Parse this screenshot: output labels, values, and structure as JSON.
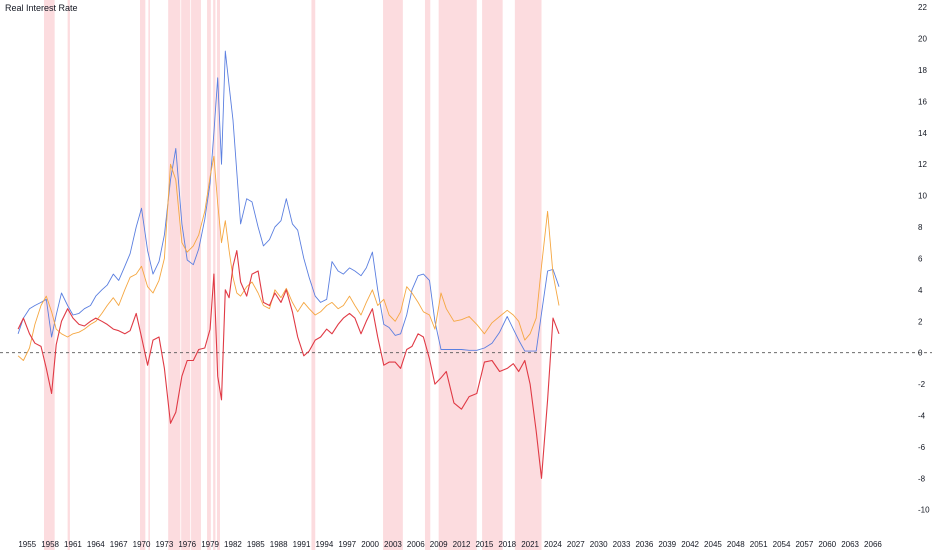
{
  "chart_data": {
    "type": "line",
    "title": "Real Interest Rate",
    "xlabel": "",
    "ylabel": "",
    "xlim": [
      1953,
      2068.5
    ],
    "ylim": [
      -10.4,
      22.2
    ],
    "x_ticks": [
      "1955",
      "1958",
      "1961",
      "1964",
      "1967",
      "1970",
      "1973",
      "1976",
      "1979",
      "1982",
      "1985",
      "1988",
      "1991",
      "1994",
      "1997",
      "2000",
      "2003",
      "2006",
      "2009",
      "2012",
      "2015",
      "2018",
      "2021",
      "2024",
      "2027",
      "2030",
      "2033",
      "2036",
      "2039",
      "2042",
      "2045",
      "2048",
      "2051",
      "2054",
      "2057",
      "2060",
      "2063",
      "2066"
    ],
    "y_ticks": [
      "-10",
      "-8",
      "-6",
      "-4",
      "-2",
      "0",
      "2",
      "4",
      "6",
      "8",
      "10",
      "12",
      "14",
      "16",
      "18",
      "20",
      "22"
    ],
    "zero_line": true,
    "grid": false,
    "legend": "none",
    "shaded_periods": [
      [
        1957.2,
        1958.6
      ],
      [
        1960.3,
        1960.6
      ],
      [
        1969.8,
        1970.5
      ],
      [
        1970.9,
        1971.1
      ],
      [
        1973.5,
        1975.1
      ],
      [
        1975.2,
        1976.4
      ],
      [
        1976.5,
        1977.8
      ],
      [
        1978.6,
        1979.1
      ],
      [
        1979.4,
        1979.7
      ],
      [
        1979.9,
        1980.3
      ],
      [
        1992.3,
        1992.8
      ],
      [
        2001.7,
        2004.3
      ],
      [
        2007.2,
        2007.9
      ],
      [
        2009.0,
        2014.0
      ],
      [
        2014.7,
        2017.4
      ],
      [
        2019.0,
        2022.5
      ]
    ],
    "series": [
      {
        "color": "#5b7fe0",
        "x": [
          1953.8,
          1954.5,
          1955.3,
          1956.0,
          1956.8,
          1957.5,
          1958.2,
          1958.8,
          1959.5,
          1960.3,
          1961.0,
          1961.8,
          1962.5,
          1963.3,
          1964.0,
          1964.8,
          1965.5,
          1966.3,
          1967.0,
          1967.8,
          1968.5,
          1969.3,
          1970.0,
          1970.8,
          1971.5,
          1972.3,
          1973.0,
          1973.8,
          1974.5,
          1975.3,
          1976.0,
          1976.8,
          1977.5,
          1978.3,
          1979.0,
          1979.5,
          1980.0,
          1980.5,
          1981.0,
          1981.5,
          1982.0,
          1982.5,
          1983.0,
          1983.8,
          1984.5,
          1985.3,
          1986.0,
          1986.8,
          1987.5,
          1988.3,
          1989.0,
          1989.8,
          1990.5,
          1991.3,
          1992.0,
          1992.8,
          1993.5,
          1994.3,
          1995.0,
          1995.8,
          1996.5,
          1997.3,
          1998.0,
          1998.8,
          1999.5,
          2000.3,
          2001.0,
          2001.8,
          2002.5,
          2003.3,
          2004.0,
          2004.8,
          2005.5,
          2006.3,
          2007.0,
          2007.8,
          2008.5,
          2009.3,
          2010.0,
          2011.0,
          2012.0,
          2013.0,
          2014.0,
          2015.0,
          2016.0,
          2017.0,
          2018.0,
          2018.8,
          2019.5,
          2020.3,
          2021.0,
          2021.8,
          2022.5,
          2023.3,
          2024.0,
          2024.8
        ],
        "y": [
          1.2,
          2.2,
          2.8,
          3.0,
          3.2,
          3.4,
          1.0,
          2.4,
          3.8,
          3.0,
          2.4,
          2.5,
          2.8,
          3.0,
          3.6,
          4.0,
          4.3,
          5.0,
          4.6,
          5.5,
          6.3,
          8.0,
          9.2,
          6.5,
          5.0,
          5.8,
          7.5,
          11.0,
          13.0,
          8.2,
          5.9,
          5.6,
          6.6,
          8.5,
          10.8,
          14.0,
          17.5,
          12.0,
          19.2,
          17.0,
          14.8,
          11.5,
          8.2,
          9.8,
          9.6,
          8.0,
          6.8,
          7.2,
          8.0,
          8.4,
          9.8,
          8.2,
          7.8,
          6.0,
          4.8,
          3.6,
          3.2,
          3.4,
          5.8,
          5.2,
          5.0,
          5.4,
          5.2,
          4.9,
          5.4,
          6.4,
          4.0,
          1.8,
          1.6,
          1.1,
          1.2,
          2.4,
          4.0,
          4.9,
          5.0,
          4.6,
          2.0,
          0.2,
          0.2,
          0.2,
          0.2,
          0.15,
          0.15,
          0.3,
          0.6,
          1.3,
          2.3,
          1.5,
          0.8,
          0.1,
          0.1,
          0.1,
          2.5,
          5.2,
          5.3,
          4.2
        ]
      },
      {
        "color": "#f5a742",
        "x": [
          1953.8,
          1954.5,
          1955.3,
          1956.0,
          1956.8,
          1957.5,
          1958.2,
          1958.8,
          1959.5,
          1960.3,
          1961.0,
          1961.8,
          1962.5,
          1963.3,
          1964.0,
          1964.8,
          1965.5,
          1966.3,
          1967.0,
          1967.8,
          1968.5,
          1969.3,
          1970.0,
          1970.8,
          1971.5,
          1972.3,
          1973.0,
          1973.8,
          1974.5,
          1975.3,
          1976.0,
          1976.8,
          1977.5,
          1978.3,
          1979.0,
          1979.5,
          1980.0,
          1980.5,
          1981.0,
          1981.5,
          1982.0,
          1982.5,
          1983.0,
          1983.8,
          1984.5,
          1985.3,
          1986.0,
          1986.8,
          1987.5,
          1988.3,
          1989.0,
          1989.8,
          1990.5,
          1991.3,
          1992.0,
          1992.8,
          1993.5,
          1994.3,
          1995.0,
          1995.8,
          1996.5,
          1997.3,
          1998.0,
          1998.8,
          1999.5,
          2000.3,
          2001.0,
          2001.8,
          2002.5,
          2003.3,
          2004.0,
          2004.8,
          2005.5,
          2006.3,
          2007.0,
          2007.8,
          2008.5,
          2009.3,
          2010.0,
          2011.0,
          2012.0,
          2013.0,
          2014.0,
          2015.0,
          2016.0,
          2017.0,
          2018.0,
          2018.8,
          2019.5,
          2020.3,
          2021.0,
          2021.8,
          2022.5,
          2023.3,
          2024.0,
          2024.8
        ],
        "y": [
          -0.2,
          -0.5,
          0.3,
          1.8,
          3.0,
          3.6,
          2.6,
          1.5,
          1.2,
          1.0,
          1.2,
          1.3,
          1.5,
          1.8,
          2.0,
          2.5,
          3.0,
          3.5,
          3.0,
          4.0,
          4.8,
          5.0,
          5.5,
          4.2,
          3.8,
          4.6,
          6.0,
          12.0,
          11.0,
          7.0,
          6.4,
          6.8,
          7.5,
          9.0,
          11.2,
          12.5,
          9.5,
          7.0,
          8.4,
          6.5,
          4.8,
          3.8,
          3.6,
          4.2,
          4.5,
          3.8,
          3.0,
          2.8,
          4.0,
          3.5,
          4.1,
          3.2,
          2.6,
          3.2,
          2.8,
          2.4,
          2.6,
          3.0,
          3.2,
          2.8,
          3.0,
          3.6,
          3.0,
          2.4,
          3.2,
          4.0,
          3.0,
          3.4,
          2.4,
          2.0,
          2.6,
          4.2,
          3.8,
          3.2,
          2.6,
          2.4,
          1.5,
          3.8,
          2.8,
          2.0,
          2.1,
          2.3,
          1.8,
          1.2,
          1.9,
          2.3,
          2.7,
          2.4,
          2.0,
          0.8,
          1.2,
          2.2,
          5.5,
          9.0,
          5.0,
          3.0
        ]
      },
      {
        "color": "#e03a45",
        "x": [
          1953.8,
          1954.5,
          1955.3,
          1956.0,
          1956.8,
          1957.5,
          1958.2,
          1958.8,
          1959.5,
          1960.3,
          1961.0,
          1961.8,
          1962.5,
          1963.3,
          1964.0,
          1964.8,
          1965.5,
          1966.3,
          1967.0,
          1967.8,
          1968.5,
          1969.3,
          1970.0,
          1970.8,
          1971.5,
          1972.3,
          1973.0,
          1973.8,
          1974.5,
          1975.3,
          1976.0,
          1976.8,
          1977.5,
          1978.3,
          1979.0,
          1979.5,
          1980.0,
          1980.5,
          1981.0,
          1981.5,
          1982.0,
          1982.5,
          1983.0,
          1983.8,
          1984.5,
          1985.3,
          1986.0,
          1986.8,
          1987.5,
          1988.3,
          1989.0,
          1989.8,
          1990.5,
          1991.3,
          1992.0,
          1992.8,
          1993.5,
          1994.3,
          1995.0,
          1995.8,
          1996.5,
          1997.3,
          1998.0,
          1998.8,
          1999.5,
          2000.3,
          2001.0,
          2001.8,
          2002.5,
          2003.3,
          2004.0,
          2004.8,
          2005.5,
          2006.3,
          2007.0,
          2007.8,
          2008.5,
          2009.3,
          2010.0,
          2011.0,
          2012.0,
          2013.0,
          2014.0,
          2015.0,
          2016.0,
          2017.0,
          2018.0,
          2018.8,
          2019.5,
          2020.3,
          2021.0,
          2021.8,
          2022.5,
          2023.3,
          2024.0,
          2024.8
        ],
        "y": [
          1.5,
          2.2,
          1.2,
          0.6,
          0.4,
          -1.0,
          -2.6,
          0.5,
          2.0,
          2.8,
          2.2,
          1.8,
          1.7,
          2.0,
          2.2,
          2.0,
          1.8,
          1.5,
          1.4,
          1.2,
          1.4,
          2.5,
          1.0,
          -0.8,
          0.8,
          1.0,
          -1.0,
          -4.5,
          -3.8,
          -1.5,
          -0.5,
          -0.5,
          0.2,
          0.3,
          1.5,
          5.0,
          -1.5,
          -3.0,
          4.0,
          3.5,
          5.5,
          6.5,
          4.5,
          3.6,
          5.0,
          5.2,
          3.2,
          3.0,
          3.8,
          3.2,
          4.0,
          2.6,
          1.0,
          -0.2,
          0.1,
          0.8,
          1.0,
          1.5,
          1.2,
          1.8,
          2.2,
          2.5,
          2.2,
          1.2,
          2.0,
          2.8,
          1.0,
          -0.8,
          -0.6,
          -0.6,
          -1.0,
          0.2,
          0.4,
          1.2,
          1.0,
          -0.4,
          -2.0,
          -1.6,
          -1.2,
          -3.2,
          -3.6,
          -2.8,
          -2.6,
          -0.6,
          -0.5,
          -1.2,
          -1.0,
          -0.7,
          -1.2,
          -0.5,
          -2.0,
          -5.0,
          -8.0,
          -3.0,
          2.2,
          1.2
        ]
      }
    ]
  }
}
